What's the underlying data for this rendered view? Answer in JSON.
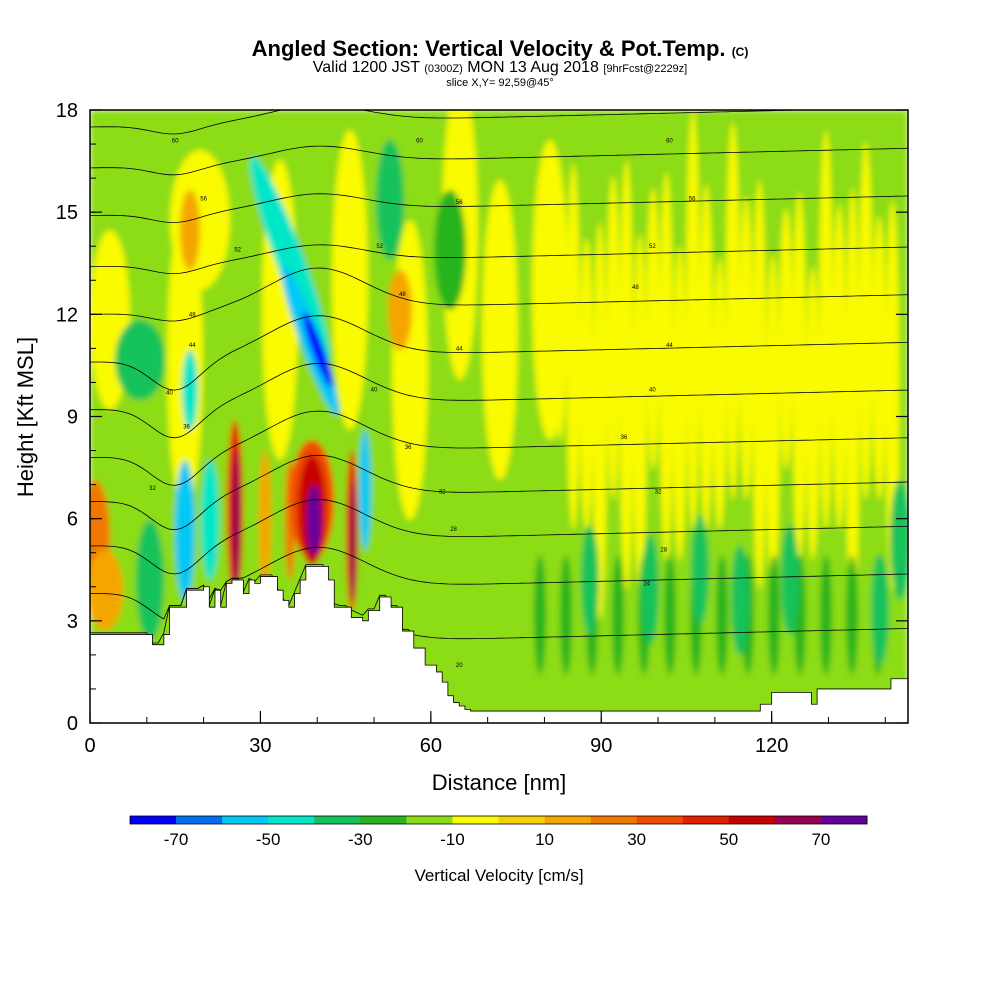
{
  "header": {
    "title_main": "Angled Section: Vertical Velocity & Pot.Temp.",
    "title_unit": "(C)",
    "valid_a": "Valid 1200 JST",
    "valid_zulu": "(0300Z)",
    "valid_b": "MON 13 Aug 2018",
    "valid_fcst": "[9hrFcst@2229z]",
    "slice": "slice X,Y= 92,59@45°"
  },
  "chart_data": {
    "type": "heatmap",
    "xlabel": "Distance [nm]",
    "ylabel": "Height [Kft MSL]",
    "xlim": [
      0,
      144
    ],
    "ylim": [
      0,
      18
    ],
    "x_ticks": [
      0,
      30,
      60,
      90,
      120
    ],
    "y_ticks": [
      0,
      3,
      6,
      9,
      12,
      15,
      18
    ],
    "colorbar": {
      "label": "Vertical Velocity [cm/s]",
      "tick_labels": [
        -70,
        -50,
        -30,
        -10,
        10,
        30,
        50,
        70
      ],
      "bounds": [
        -80,
        80
      ],
      "step": 10,
      "colors": [
        "#0000ff",
        "#0070f0",
        "#00c8f5",
        "#00e6c8",
        "#13c25a",
        "#28b41e",
        "#8cdc14",
        "#fafa00",
        "#f5d200",
        "#f5a500",
        "#f07800",
        "#f04b00",
        "#e61e00",
        "#c80000",
        "#960050",
        "#64009b"
      ]
    },
    "terrain": {
      "x": [
        0,
        10,
        11,
        13,
        14,
        17,
        20,
        21,
        22,
        23,
        24,
        25,
        27,
        28,
        29,
        30,
        32,
        33,
        34,
        35,
        36,
        37,
        38,
        40,
        42,
        43,
        45,
        46,
        48,
        49,
        51,
        53,
        55,
        57,
        59,
        61,
        62,
        63,
        64,
        65,
        66,
        67,
        68,
        70,
        75,
        85,
        95,
        105,
        115,
        118,
        120,
        122,
        125,
        127,
        128,
        132,
        138,
        141,
        144
      ],
      "height": [
        2.6,
        2.6,
        2.3,
        2.6,
        3.4,
        3.9,
        4.0,
        3.4,
        3.9,
        3.4,
        4.1,
        4.2,
        3.8,
        4.2,
        4.1,
        4.3,
        4.3,
        3.9,
        3.6,
        3.4,
        3.8,
        4.2,
        4.6,
        4.6,
        4.2,
        3.4,
        3.4,
        3.1,
        3.0,
        3.3,
        3.7,
        3.4,
        2.7,
        2.2,
        1.7,
        1.5,
        1.2,
        0.8,
        0.6,
        0.5,
        0.4,
        0.35,
        0.35,
        0.35,
        0.35,
        0.35,
        0.35,
        0.35,
        0.35,
        0.55,
        0.9,
        0.9,
        0.9,
        0.55,
        1.0,
        1.0,
        1.0,
        1.3,
        1.3
      ]
    },
    "isentropes": {
      "labels": [
        {
          "x": 15,
          "y": 17.1,
          "text": "60"
        },
        {
          "x": 58,
          "y": 17.1,
          "text": "60"
        },
        {
          "x": 102,
          "y": 17.1,
          "text": "60"
        },
        {
          "x": 20,
          "y": 15.4,
          "text": "56"
        },
        {
          "x": 65,
          "y": 15.3,
          "text": "56"
        },
        {
          "x": 106,
          "y": 15.4,
          "text": "56"
        },
        {
          "x": 26,
          "y": 13.9,
          "text": "52"
        },
        {
          "x": 51,
          "y": 14.0,
          "text": "52"
        },
        {
          "x": 99,
          "y": 14.0,
          "text": "52"
        },
        {
          "x": 18,
          "y": 12.0,
          "text": "48"
        },
        {
          "x": 55,
          "y": 12.6,
          "text": "48"
        },
        {
          "x": 96,
          "y": 12.8,
          "text": "48"
        },
        {
          "x": 18,
          "y": 11.1,
          "text": "44"
        },
        {
          "x": 65,
          "y": 11.0,
          "text": "44"
        },
        {
          "x": 102,
          "y": 11.1,
          "text": "44"
        },
        {
          "x": 14,
          "y": 9.7,
          "text": "40"
        },
        {
          "x": 50,
          "y": 9.8,
          "text": "40"
        },
        {
          "x": 99,
          "y": 9.8,
          "text": "40"
        },
        {
          "x": 17,
          "y": 8.7,
          "text": "36"
        },
        {
          "x": 56,
          "y": 8.1,
          "text": "36"
        },
        {
          "x": 94,
          "y": 8.4,
          "text": "36"
        },
        {
          "x": 11,
          "y": 6.9,
          "text": "32"
        },
        {
          "x": 62,
          "y": 6.8,
          "text": "32"
        },
        {
          "x": 100,
          "y": 6.8,
          "text": "32"
        },
        {
          "x": 64,
          "y": 5.7,
          "text": "28"
        },
        {
          "x": 101,
          "y": 5.1,
          "text": "28"
        },
        {
          "x": 98,
          "y": 4.1,
          "text": "24"
        },
        {
          "x": 65,
          "y": 1.7,
          "text": "20"
        }
      ]
    }
  }
}
